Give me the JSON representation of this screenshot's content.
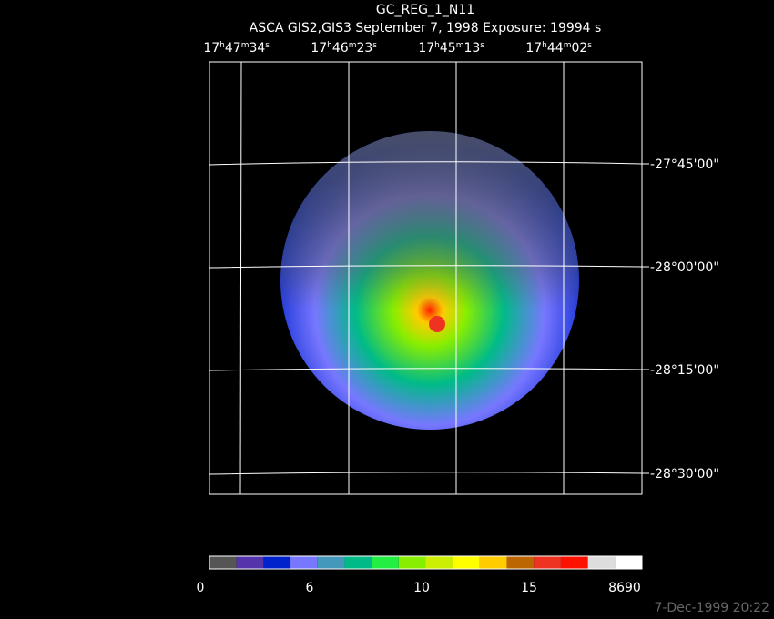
{
  "header": {
    "title": "GC_REG_1_N11",
    "subtitle": "ASCA GIS2,GIS3 September 7, 1998 Exposure: 19994 s"
  },
  "ra_labels": [
    "17h47m34s",
    "17h46m23s",
    "17h45m13s",
    "17h44m02s"
  ],
  "dec_labels": [
    "-27°45'00\"",
    "-28°00'00\"",
    "-28°15'00\"",
    "-28°30'00\""
  ],
  "colorbar": {
    "colors": [
      "#555555",
      "#5533aa",
      "#0022cc",
      "#7777ff",
      "#4499bb",
      "#00bb88",
      "#22ee44",
      "#88ee00",
      "#ccee00",
      "#ffff00",
      "#ffcc00",
      "#bb6600",
      "#ee3322",
      "#ff1100",
      "#dddddd",
      "#ffffff"
    ],
    "labels": [
      "0",
      "6",
      "10",
      "15",
      "8690"
    ]
  },
  "footer": {
    "timestamp": "7-Dec-1999 20:22"
  }
}
